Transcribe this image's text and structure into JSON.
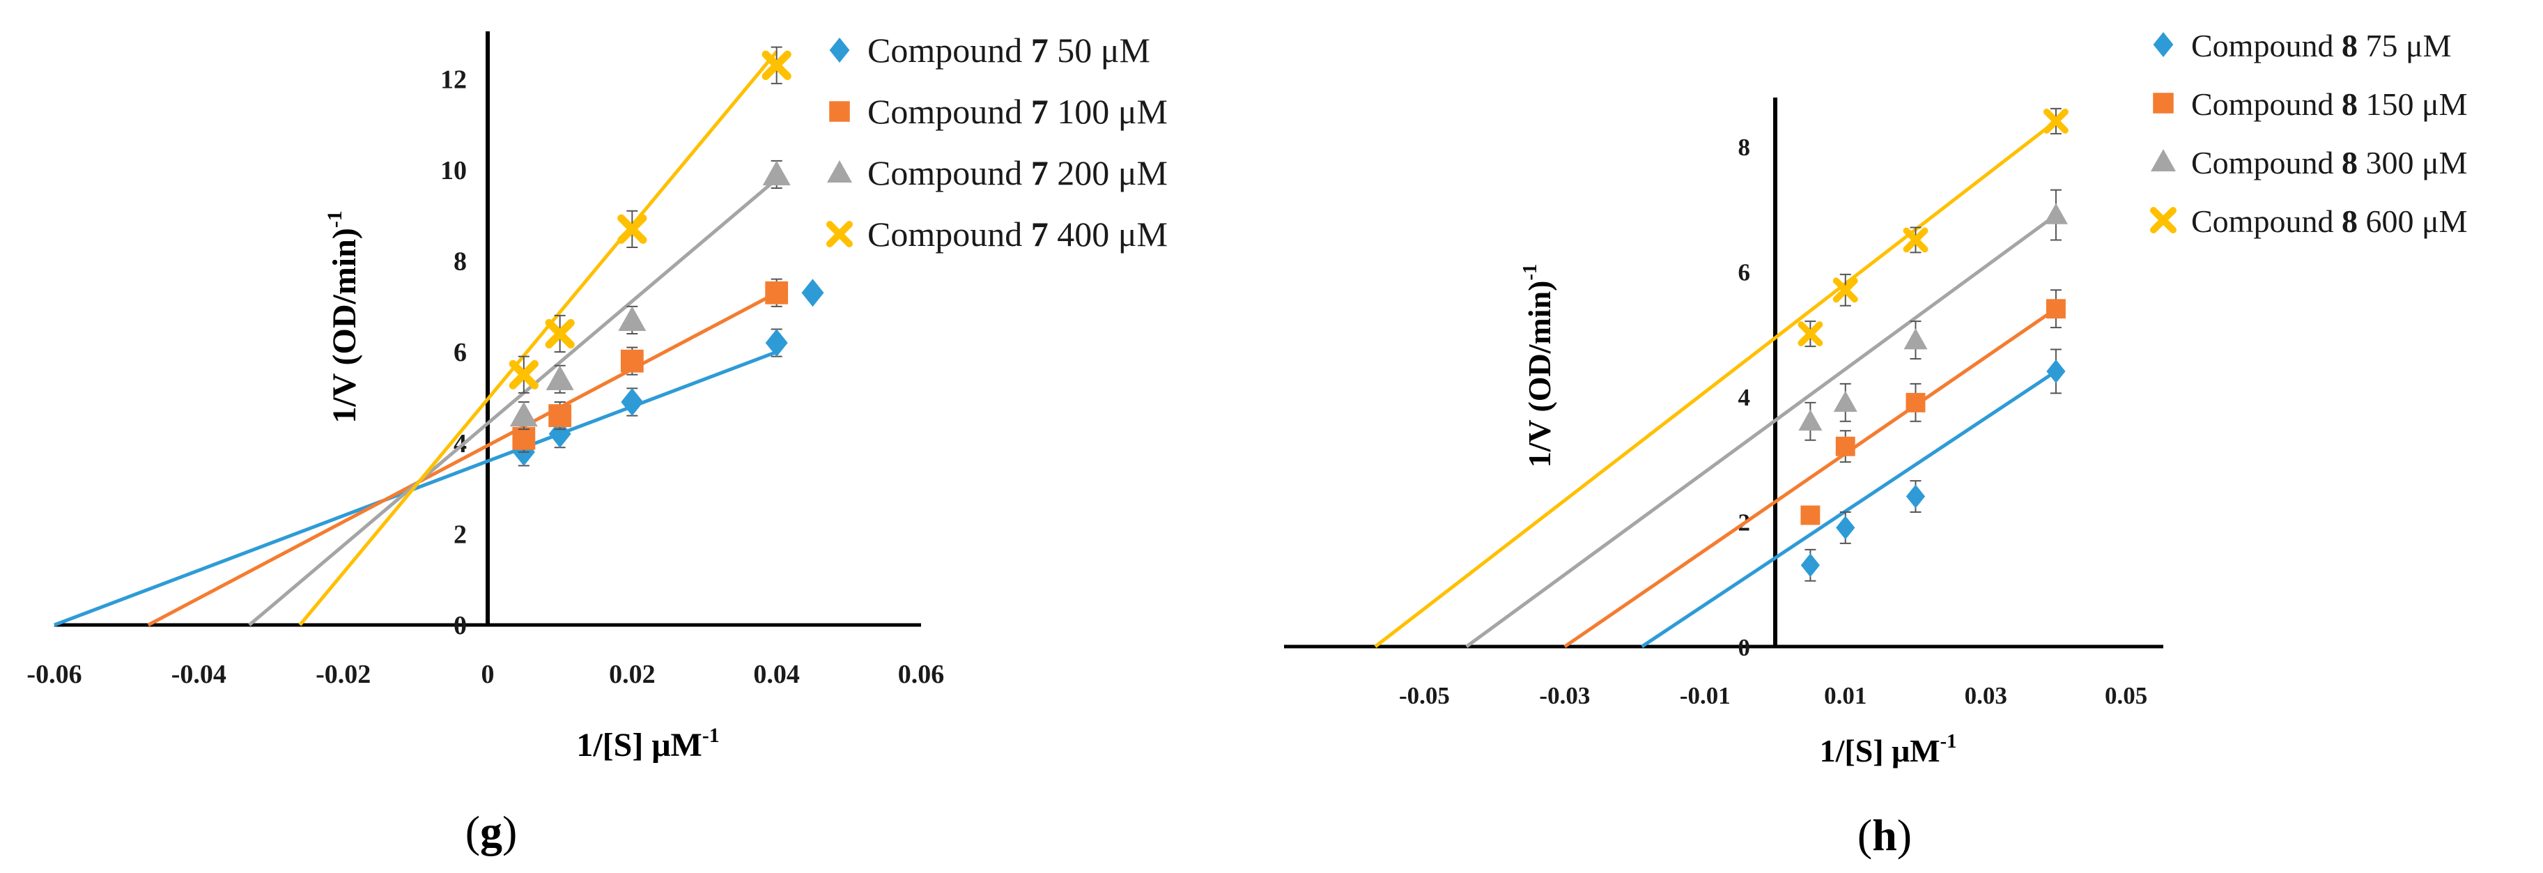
{
  "chart_data": [
    {
      "type": "scatter",
      "panel_label": "g",
      "caption": [
        "(",
        "g",
        ")"
      ],
      "xlabel": "1/[S] μM",
      "xlabel_sup": "-1",
      "ylabel": "1/V (OD/min)",
      "ylabel_sup": "-1",
      "xlim": [
        -0.06,
        0.06
      ],
      "ylim": [
        0,
        13
      ],
      "x_ticks": [
        "-0.06",
        "-0.04",
        "-0.02",
        "0",
        "0.02",
        "0.04",
        "0.06"
      ],
      "y_ticks": [
        "0",
        "2",
        "4",
        "6",
        "8",
        "10",
        "12"
      ],
      "legend": [
        {
          "prefix": "Compound ",
          "num": "7",
          "suffix": " 50 μM"
        },
        {
          "prefix": "Compound ",
          "num": "7",
          "suffix": " 100 μM"
        },
        {
          "prefix": "Compound ",
          "num": "7",
          "suffix": " 200 μM"
        },
        {
          "prefix": "Compound ",
          "num": "7",
          "suffix": " 400 μM"
        }
      ],
      "series": [
        {
          "name": "Compound 7 50 μM",
          "marker": "diamond",
          "color": "#2E9BD6",
          "x": [
            0.005,
            0.01,
            0.02,
            0.04
          ],
          "y": [
            3.8,
            4.2,
            4.9,
            6.2
          ],
          "err": [
            0.3,
            0.3,
            0.3,
            0.3
          ],
          "line": {
            "x": [
              -0.06,
              0.04
            ],
            "y": [
              0.0,
              6.0
            ]
          }
        },
        {
          "name": "Compound 7 100 μM",
          "marker": "square",
          "color": "#F47C30",
          "x": [
            0.005,
            0.01,
            0.02,
            0.04
          ],
          "y": [
            4.1,
            4.6,
            5.8,
            7.3
          ],
          "err": [
            0.3,
            0.3,
            0.3,
            0.3
          ],
          "line": {
            "x": [
              -0.047,
              0.04
            ],
            "y": [
              0.0,
              7.3
            ]
          }
        },
        {
          "name": "Compound 7 200 μM",
          "marker": "triangle",
          "color": "#A5A5A5",
          "x": [
            0.005,
            0.01,
            0.02,
            0.04
          ],
          "y": [
            4.6,
            5.4,
            6.7,
            9.9
          ],
          "err": [
            0.3,
            0.3,
            0.3,
            0.3
          ],
          "line": {
            "x": [
              -0.033,
              0.04
            ],
            "y": [
              0.0,
              9.8
            ]
          }
        },
        {
          "name": "Compound 7 400 μM",
          "marker": "cross",
          "color": "#FFC000",
          "x": [
            0.005,
            0.01,
            0.02,
            0.04
          ],
          "y": [
            5.5,
            6.4,
            8.7,
            12.3
          ],
          "err": [
            0.4,
            0.4,
            0.4,
            0.4
          ],
          "line": {
            "x": [
              -0.026,
              0.04
            ],
            "y": [
              0.0,
              12.6
            ]
          }
        }
      ],
      "extra_points": [
        {
          "series": 0,
          "x": 0.045,
          "y": 7.3
        }
      ]
    },
    {
      "type": "scatter",
      "panel_label": "h",
      "caption": [
        "(",
        "h",
        ")"
      ],
      "xlabel": "1/[S] μM",
      "xlabel_sup": "-1",
      "ylabel": "1/V (OD/min)",
      "ylabel_sup": "-1",
      "xlim": [
        -0.07,
        0.055
      ],
      "ylim": [
        0,
        9
      ],
      "x_ticks_values": [
        -0.05,
        -0.03,
        -0.01,
        0.01,
        0.03,
        0.05
      ],
      "x_ticks": [
        "-0.05",
        "-0.03",
        "-0.01",
        "0.01",
        "0.03",
        "0.05"
      ],
      "y_ticks": [
        "0",
        "2",
        "4",
        "6",
        "8"
      ],
      "legend": [
        {
          "prefix": "Compound ",
          "num": "8",
          "suffix": " 75 μM"
        },
        {
          "prefix": "Compound ",
          "num": "8",
          "suffix": " 150 μM"
        },
        {
          "prefix": "Compound ",
          "num": "8",
          "suffix": " 300 μM"
        },
        {
          "prefix": "Compound ",
          "num": "8",
          "suffix": " 600 μM"
        }
      ],
      "series": [
        {
          "name": "Compound 8 75 μM",
          "marker": "diamond",
          "color": "#2E9BD6",
          "x": [
            0.005,
            0.01,
            0.02,
            0.04
          ],
          "y": [
            1.3,
            1.9,
            2.4,
            4.4
          ],
          "err": [
            0.25,
            0.25,
            0.25,
            0.35
          ],
          "line": {
            "x": [
              -0.019,
              0.04
            ],
            "y": [
              0.0,
              4.4
            ]
          }
        },
        {
          "name": "Compound 8 150 μM",
          "marker": "square",
          "color": "#F47C30",
          "x": [
            0.005,
            0.01,
            0.02,
            0.04
          ],
          "y": [
            2.1,
            3.2,
            3.9,
            5.4
          ],
          "err": [
            0.0,
            0.25,
            0.3,
            0.3
          ],
          "line": {
            "x": [
              -0.03,
              0.04
            ],
            "y": [
              0.0,
              5.4
            ]
          }
        },
        {
          "name": "Compound 8 300 μM",
          "marker": "triangle",
          "color": "#A5A5A5",
          "x": [
            0.005,
            0.01,
            0.02,
            0.04
          ],
          "y": [
            3.6,
            3.9,
            4.9,
            6.9
          ],
          "err": [
            0.3,
            0.3,
            0.3,
            0.4
          ],
          "line": {
            "x": [
              -0.044,
              0.04
            ],
            "y": [
              0.0,
              6.9
            ]
          }
        },
        {
          "name": "Compound 8 600 μM",
          "marker": "cross",
          "color": "#FFC000",
          "x": [
            0.005,
            0.01,
            0.02,
            0.04
          ],
          "y": [
            5.0,
            5.7,
            6.5,
            8.4
          ],
          "err": [
            0.2,
            0.25,
            0.2,
            0.2
          ],
          "line": {
            "x": [
              -0.057,
              0.04
            ],
            "y": [
              0.0,
              8.4
            ]
          }
        }
      ]
    }
  ]
}
